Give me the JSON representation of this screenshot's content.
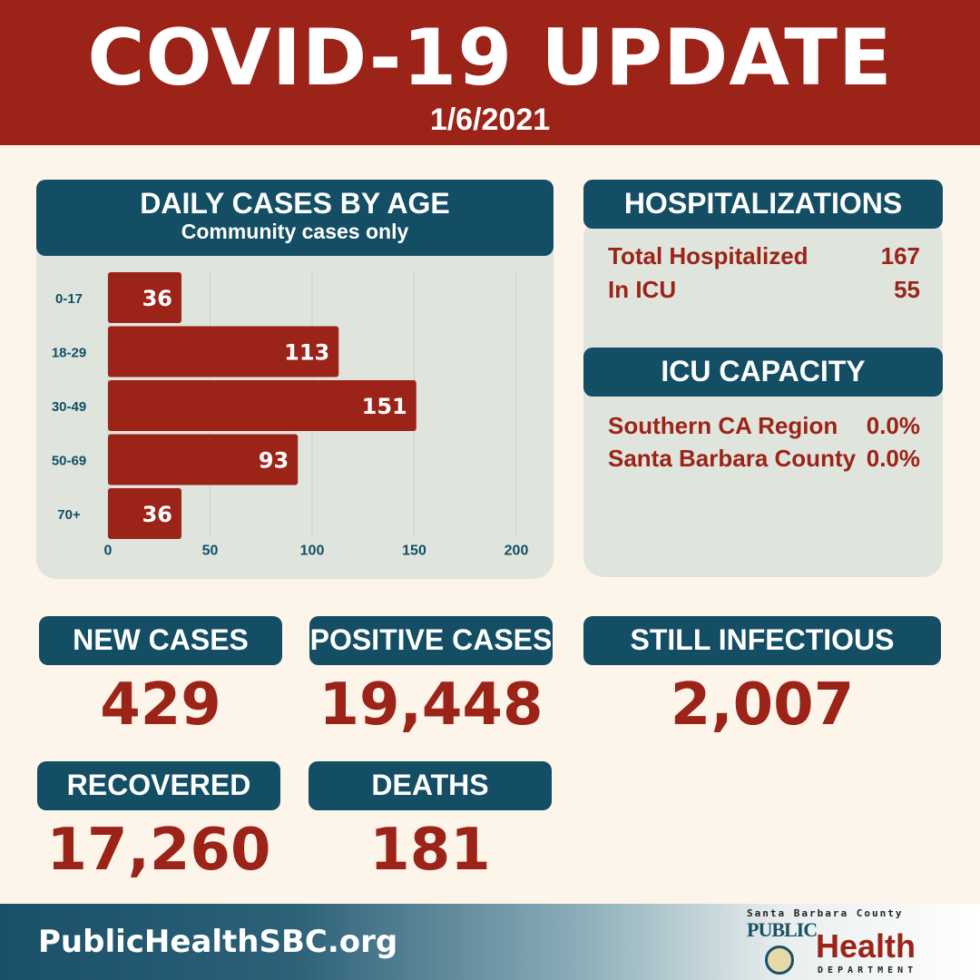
{
  "header": {
    "title": "COVID-19 UPDATE",
    "date": "1/6/2021"
  },
  "age_chart": {
    "title": "DAILY CASES BY AGE",
    "subtitle": "Community cases only"
  },
  "chart_data": {
    "type": "bar",
    "orientation": "horizontal",
    "categories": [
      "0-17",
      "18-29",
      "30-49",
      "50-69",
      "70+"
    ],
    "values": [
      36,
      113,
      151,
      93,
      36
    ],
    "xlim": [
      0,
      200
    ],
    "xticks": [
      0,
      50,
      100,
      150,
      200
    ],
    "grid": true,
    "bar_color": "#9c2318"
  },
  "hospitalizations": {
    "title": "HOSPITALIZATIONS",
    "rows": [
      {
        "label": "Total Hospitalized",
        "value": "167"
      },
      {
        "label": "In ICU",
        "value": "55"
      }
    ]
  },
  "icu_capacity": {
    "title": "ICU CAPACITY",
    "rows": [
      {
        "label": "Southern CA Region",
        "value": "0.0%"
      },
      {
        "label": "Santa Barbara County",
        "value": "0.0%"
      }
    ]
  },
  "stats": {
    "new_cases": {
      "label": "NEW CASES",
      "value": "429"
    },
    "positive_cases": {
      "label": "POSITIVE CASES",
      "value": "19,448"
    },
    "still_infectious": {
      "label": "STILL INFECTIOUS",
      "value": "2,007"
    },
    "recovered": {
      "label": "RECOVERED",
      "value": "17,260"
    },
    "deaths": {
      "label": "DEATHS",
      "value": "181"
    }
  },
  "footer": {
    "url": "PublicHealthSBC.org",
    "logo_county": "Santa Barbara County",
    "logo_public": "PUBLIC",
    "logo_health": "Health",
    "logo_department": "DEPARTMENT"
  },
  "colors": {
    "header_red": "#9c2318",
    "navy": "#134e65",
    "panel": "#dfe5dd",
    "background": "#fdf5ea"
  }
}
